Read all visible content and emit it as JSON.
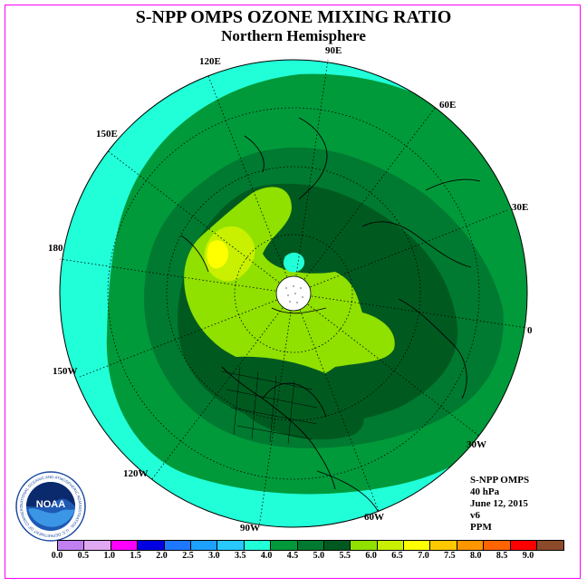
{
  "title": "S-NPP OMPS OZONE MIXING RATIO",
  "subtitle": "Northern Hemisphere",
  "longitude_labels": {
    "lon_90e": "90E",
    "lon_120e": "120E",
    "lon_60e": "60E",
    "lon_150e": "150E",
    "lon_30e": "30E",
    "lon_180": "180",
    "lon_0": "0",
    "lon_150w": "150W",
    "lon_30w": "30W",
    "lon_120w": "120W",
    "lon_60w": "60W",
    "lon_90w": "90W"
  },
  "info": {
    "instrument": "S-NPP OMPS",
    "level": "40 hPa",
    "date": "June 12, 2015",
    "version": "v6",
    "units": "PPM"
  },
  "colorbar": {
    "colors": [
      "#c080f0",
      "#e0a8f0",
      "#ff00ff",
      "#0000e0",
      "#1e78ff",
      "#1ea0ff",
      "#28c8ff",
      "#20ffd8",
      "#009a3a",
      "#007a30",
      "#005a20",
      "#90e000",
      "#c8f000",
      "#ffff00",
      "#ffc800",
      "#ff9600",
      "#ff6400",
      "#ff0000",
      "#8b4a2a"
    ],
    "ticks": [
      "0.0",
      "0.5",
      "1.0",
      "1.5",
      "2.0",
      "2.5",
      "3.0",
      "3.5",
      "4.0",
      "4.5",
      "5.0",
      "5.5",
      "6.0",
      "6.5",
      "7.0",
      "7.5",
      "8.0",
      "8.5",
      "9.0"
    ]
  },
  "logo": {
    "text": "NOAA",
    "ring_text": "NATIONAL OCEANIC AND ATMOSPHERIC ADMINISTRATION · U.S. DEPARTMENT OF COMMERCE"
  },
  "map_colors": {
    "cyan": "#20ffd8",
    "green_4_45": "#009a3a",
    "green_45_5": "#007a30",
    "green_5_55": "#005a20",
    "lime_55_6": "#90e000",
    "yellowgreen_6_65": "#c8f000",
    "yellow_65_7": "#ffff00"
  }
}
